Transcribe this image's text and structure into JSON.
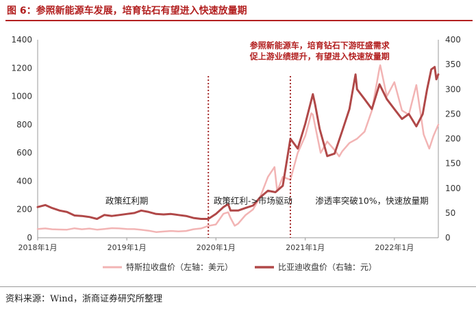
{
  "figure": {
    "title": "图 6：参照新能源车发展，培育钻石有望进入快速放量期",
    "source": "资料来源：Wind，浙商证券研究所整理"
  },
  "chart_data": {
    "type": "line",
    "x_range": [
      "2018-01-01",
      "2022-06-30"
    ],
    "x_ticks": [
      {
        "date": "2018-01-01",
        "label": "2018年1月"
      },
      {
        "date": "2019-01-01",
        "label": "2019年1月"
      },
      {
        "date": "2020-01-01",
        "label": "2020年1月"
      },
      {
        "date": "2021-01-01",
        "label": "2021年1月"
      },
      {
        "date": "2022-01-01",
        "label": "2022年1月"
      }
    ],
    "y_left": {
      "min": 0,
      "max": 1400,
      "ticks": [
        0,
        200,
        400,
        600,
        800,
        1000,
        1200,
        1400
      ]
    },
    "y_right": {
      "min": 0,
      "max": 400,
      "ticks": [
        0,
        50,
        100,
        150,
        200,
        250,
        300,
        350,
        400
      ]
    },
    "grid": false,
    "legend_position": "bottom",
    "colors": {
      "tesla": "#f2b4b4",
      "byd": "#b04848",
      "annotation": "#b21f1f",
      "divider": "#a52a2a",
      "axis": "#999999"
    },
    "series": [
      {
        "name": "特斯拉收盘价（左轴：美元）",
        "axis": "left",
        "points": [
          [
            "2018-01-01",
            62
          ],
          [
            "2018-02-01",
            66
          ],
          [
            "2018-03-01",
            60
          ],
          [
            "2018-04-01",
            58
          ],
          [
            "2018-05-01",
            57
          ],
          [
            "2018-06-01",
            67
          ],
          [
            "2018-07-01",
            60
          ],
          [
            "2018-08-01",
            65
          ],
          [
            "2018-09-01",
            57
          ],
          [
            "2018-10-01",
            62
          ],
          [
            "2018-11-01",
            68
          ],
          [
            "2018-12-01",
            66
          ],
          [
            "2019-01-01",
            62
          ],
          [
            "2019-02-01",
            61
          ],
          [
            "2019-03-01",
            56
          ],
          [
            "2019-04-01",
            50
          ],
          [
            "2019-05-01",
            40
          ],
          [
            "2019-06-01",
            44
          ],
          [
            "2019-07-01",
            48
          ],
          [
            "2019-08-01",
            45
          ],
          [
            "2019-09-01",
            48
          ],
          [
            "2019-10-01",
            60
          ],
          [
            "2019-11-01",
            66
          ],
          [
            "2019-12-01",
            84
          ],
          [
            "2020-01-01",
            94
          ],
          [
            "2020-02-01",
            170
          ],
          [
            "2020-02-20",
            180
          ],
          [
            "2020-03-01",
            140
          ],
          [
            "2020-03-18",
            85
          ],
          [
            "2020-04-01",
            100
          ],
          [
            "2020-05-01",
            160
          ],
          [
            "2020-06-01",
            200
          ],
          [
            "2020-07-01",
            290
          ],
          [
            "2020-08-01",
            430
          ],
          [
            "2020-08-28",
            500
          ],
          [
            "2020-09-08",
            330
          ],
          [
            "2020-10-01",
            430
          ],
          [
            "2020-11-01",
            410
          ],
          [
            "2020-12-01",
            600
          ],
          [
            "2021-01-01",
            720
          ],
          [
            "2021-01-26",
            880
          ],
          [
            "2021-02-01",
            870
          ],
          [
            "2021-03-05",
            600
          ],
          [
            "2021-04-01",
            680
          ],
          [
            "2021-05-01",
            620
          ],
          [
            "2021-05-20",
            575
          ],
          [
            "2021-06-01",
            610
          ],
          [
            "2021-07-01",
            670
          ],
          [
            "2021-08-01",
            700
          ],
          [
            "2021-09-01",
            750
          ],
          [
            "2021-10-01",
            900
          ],
          [
            "2021-11-01",
            1200
          ],
          [
            "2021-11-04",
            1220
          ],
          [
            "2021-12-01",
            1000
          ],
          [
            "2022-01-01",
            1100
          ],
          [
            "2022-02-01",
            900
          ],
          [
            "2022-03-01",
            870
          ],
          [
            "2022-04-01",
            1080
          ],
          [
            "2022-05-01",
            730
          ],
          [
            "2022-05-24",
            630
          ],
          [
            "2022-06-10",
            720
          ],
          [
            "2022-06-30",
            800
          ]
        ]
      },
      {
        "name": "比亚迪收盘价（右轴：元）",
        "axis": "right",
        "points": [
          [
            "2018-01-01",
            62
          ],
          [
            "2018-02-01",
            66
          ],
          [
            "2018-03-01",
            60
          ],
          [
            "2018-04-01",
            55
          ],
          [
            "2018-05-01",
            52
          ],
          [
            "2018-06-01",
            45
          ],
          [
            "2018-07-01",
            44
          ],
          [
            "2018-08-01",
            42
          ],
          [
            "2018-09-01",
            38
          ],
          [
            "2018-10-01",
            46
          ],
          [
            "2018-11-01",
            44
          ],
          [
            "2018-12-01",
            46
          ],
          [
            "2019-01-01",
            48
          ],
          [
            "2019-02-01",
            50
          ],
          [
            "2019-03-01",
            55
          ],
          [
            "2019-04-01",
            52
          ],
          [
            "2019-05-01",
            48
          ],
          [
            "2019-06-01",
            47
          ],
          [
            "2019-07-01",
            48
          ],
          [
            "2019-08-01",
            46
          ],
          [
            "2019-09-01",
            44
          ],
          [
            "2019-10-01",
            40
          ],
          [
            "2019-11-01",
            38
          ],
          [
            "2019-12-01",
            38
          ],
          [
            "2020-01-01",
            48
          ],
          [
            "2020-02-01",
            62
          ],
          [
            "2020-02-20",
            68
          ],
          [
            "2020-03-01",
            55
          ],
          [
            "2020-04-01",
            55
          ],
          [
            "2020-05-01",
            60
          ],
          [
            "2020-06-01",
            65
          ],
          [
            "2020-07-01",
            82
          ],
          [
            "2020-08-01",
            95
          ],
          [
            "2020-09-01",
            92
          ],
          [
            "2020-10-01",
            105
          ],
          [
            "2020-11-01",
            200
          ],
          [
            "2020-12-01",
            180
          ],
          [
            "2021-01-01",
            230
          ],
          [
            "2021-02-01",
            290
          ],
          [
            "2021-02-10",
            270
          ],
          [
            "2021-03-01",
            220
          ],
          [
            "2021-04-01",
            165
          ],
          [
            "2021-05-01",
            170
          ],
          [
            "2021-06-01",
            215
          ],
          [
            "2021-07-01",
            260
          ],
          [
            "2021-07-26",
            330
          ],
          [
            "2021-08-01",
            300
          ],
          [
            "2021-09-01",
            280
          ],
          [
            "2021-10-01",
            260
          ],
          [
            "2021-11-01",
            310
          ],
          [
            "2021-12-01",
            280
          ],
          [
            "2022-01-01",
            260
          ],
          [
            "2022-02-01",
            240
          ],
          [
            "2022-03-01",
            250
          ],
          [
            "2022-04-01",
            225
          ],
          [
            "2022-04-27",
            250
          ],
          [
            "2022-05-15",
            300
          ],
          [
            "2022-06-01",
            340
          ],
          [
            "2022-06-15",
            345
          ],
          [
            "2022-06-22",
            320
          ],
          [
            "2022-06-30",
            330
          ]
        ]
      }
    ],
    "dividers": [
      {
        "date": "2019-12-01"
      },
      {
        "date": "2020-11-01"
      }
    ],
    "phase_labels": [
      {
        "text": "政策红利期",
        "date": "2019-01-01",
        "value": 265
      },
      {
        "text": "政策红利->市场驱动",
        "date": "2020-06-01",
        "value": 265
      },
      {
        "text": "渗透率突破10%，快速放量期",
        "date": "2021-10-01",
        "value": 265
      }
    ],
    "annotation": {
      "lines": [
        "参照新能源车，培育钻石下游旺盛需求",
        "促上游业绩提升，有望进入快速放量期"
      ],
      "date": "2021-03-01",
      "value": 1360
    }
  }
}
